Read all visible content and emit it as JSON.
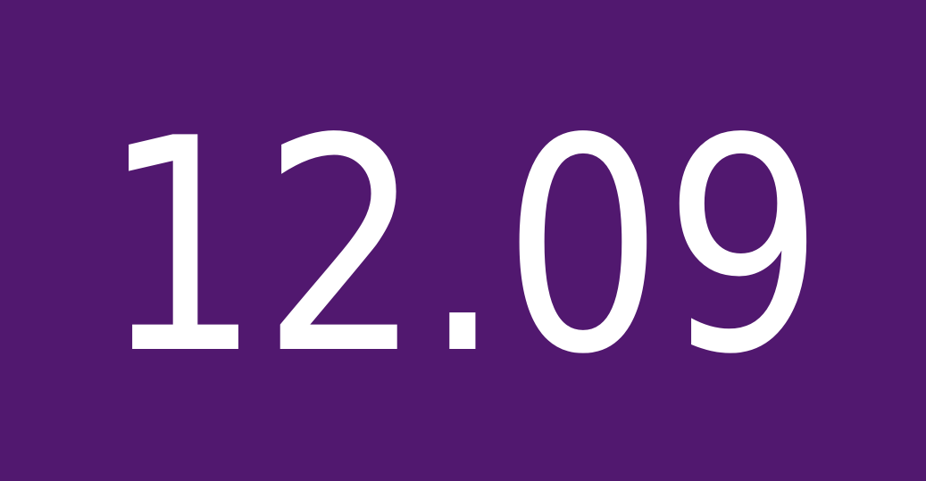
{
  "display": {
    "value": "12.09"
  },
  "colors": {
    "background": "#51186f",
    "text": "#ffffff"
  }
}
